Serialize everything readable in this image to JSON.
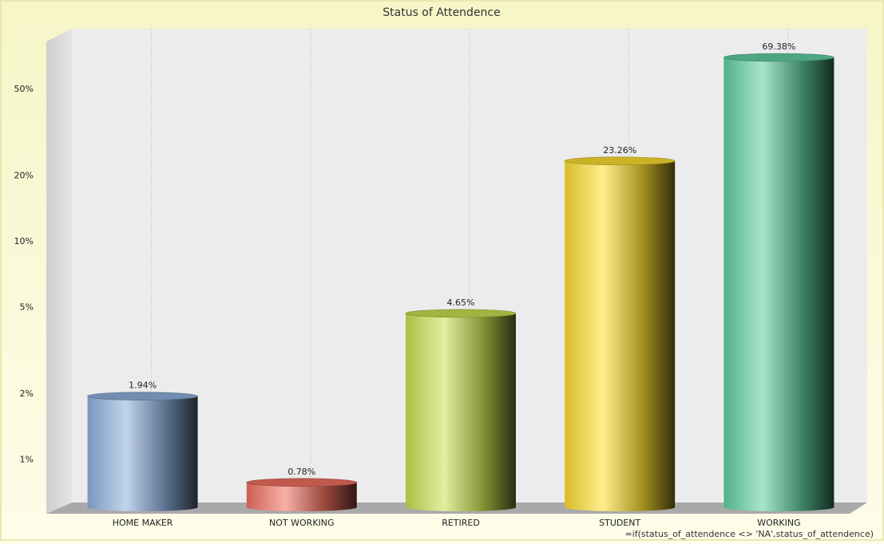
{
  "chart_data": {
    "type": "bar",
    "title": "Status of Attendence",
    "categories": [
      "HOME MAKER",
      "NOT WORKING",
      "RETIRED",
      "STUDENT",
      "WORKING"
    ],
    "values": [
      1.94,
      0.78,
      4.65,
      23.26,
      69.38
    ],
    "value_labels": [
      "1.94%",
      "0.78%",
      "4.65%",
      "23.26%",
      "69.38%"
    ],
    "y_scale": "log",
    "y_ticks": [
      {
        "value": 1,
        "label": "1%"
      },
      {
        "value": 2,
        "label": "2%"
      },
      {
        "value": 5,
        "label": "5%"
      },
      {
        "value": 10,
        "label": "10%"
      },
      {
        "value": 20,
        "label": "20%"
      },
      {
        "value": 50,
        "label": "50%"
      }
    ],
    "ylim": [
      0.6,
      90
    ],
    "grid": "vertical",
    "legend": "none",
    "colors": [
      "#8fb0dd",
      "#f07060",
      "#cce050",
      "#ffe030",
      "#60d0a0"
    ],
    "footnote": "=if(status_of_attendence <> 'NA',status_of_attendence)"
  }
}
